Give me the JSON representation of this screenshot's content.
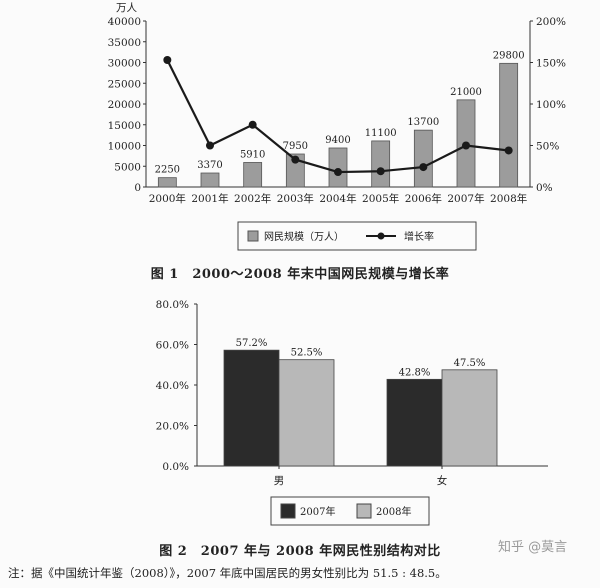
{
  "chart_data": [
    {
      "type": "bar+line",
      "y_unit_left": "万人",
      "categories": [
        "2000年",
        "2001年",
        "2002年",
        "2003年",
        "2004年",
        "2005年",
        "2006年",
        "2007年",
        "2008年"
      ],
      "series": [
        {
          "name": "网民规模（万人）",
          "type": "bar",
          "axis": "left",
          "color": "#9c9c9c",
          "values": [
            2250,
            3370,
            5910,
            7950,
            9400,
            11100,
            13700,
            21000,
            29800
          ]
        },
        {
          "name": "增长率",
          "type": "line",
          "axis": "right",
          "color": "#1a1a1a",
          "values": [
            153,
            50,
            75,
            33,
            18,
            19,
            24,
            50,
            44
          ]
        }
      ],
      "ylim_left": [
        0,
        40000
      ],
      "yticks_left": [
        "0",
        "5000",
        "10000",
        "15000",
        "20000",
        "25000",
        "30000",
        "35000",
        "40000"
      ],
      "ylim_right": [
        0,
        200
      ],
      "yticks_right": [
        "0%",
        "50%",
        "100%",
        "150%",
        "200%"
      ],
      "legend_position": "bottom",
      "caption": "图 1　2000～2008 年末中国网民规模与增长率"
    },
    {
      "type": "bar",
      "categories": [
        "男",
        "女"
      ],
      "series": [
        {
          "name": "2007年",
          "color": "#2b2b2b",
          "values": [
            57.2,
            42.8
          ],
          "labels": [
            "57.2%",
            "42.8%"
          ]
        },
        {
          "name": "2008年",
          "color": "#b8b8b8",
          "values": [
            52.5,
            47.5
          ],
          "labels": [
            "52.5%",
            "47.5%"
          ]
        }
      ],
      "ylim": [
        0,
        80
      ],
      "yticks": [
        "0.0%",
        "20.0%",
        "40.0%",
        "60.0%",
        "80.0%"
      ],
      "grid": false,
      "legend_position": "bottom",
      "caption": "图 2　2007 年与 2008 年网民性别结构对比"
    }
  ],
  "note": "注：据《中国统计年鉴（2008）》，2007 年底中国居民的男女性别比为 51.5 : 48.5。",
  "watermark": "知乎 @莫言"
}
